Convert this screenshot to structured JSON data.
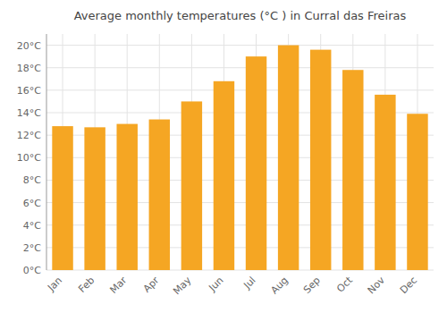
{
  "chart_data": {
    "type": "bar",
    "title": "Average monthly temperatures (°C ) in Curral das Freiras",
    "categories": [
      "Jan",
      "Feb",
      "Mar",
      "Apr",
      "May",
      "Jun",
      "Jul",
      "Aug",
      "Sep",
      "Oct",
      "Nov",
      "Dec"
    ],
    "values": [
      12.8,
      12.7,
      13.0,
      13.4,
      15.0,
      16.8,
      19.0,
      20.0,
      19.6,
      17.8,
      15.6,
      13.9
    ],
    "color": "#F5A623",
    "ylim": [
      0,
      21
    ],
    "yticks": [
      {
        "value": 0,
        "label": "0°C"
      },
      {
        "value": 2,
        "label": "2°C"
      },
      {
        "value": 4,
        "label": "4°C"
      },
      {
        "value": 6,
        "label": "6°C"
      },
      {
        "value": 8,
        "label": "8°C"
      },
      {
        "value": 10,
        "label": "10°C"
      },
      {
        "value": 12,
        "label": "12°C"
      },
      {
        "value": 14,
        "label": "14°C"
      },
      {
        "value": 16,
        "label": "16°C"
      },
      {
        "value": 18,
        "label": "18°C"
      },
      {
        "value": 20,
        "label": "20°C"
      }
    ],
    "grid": true
  }
}
